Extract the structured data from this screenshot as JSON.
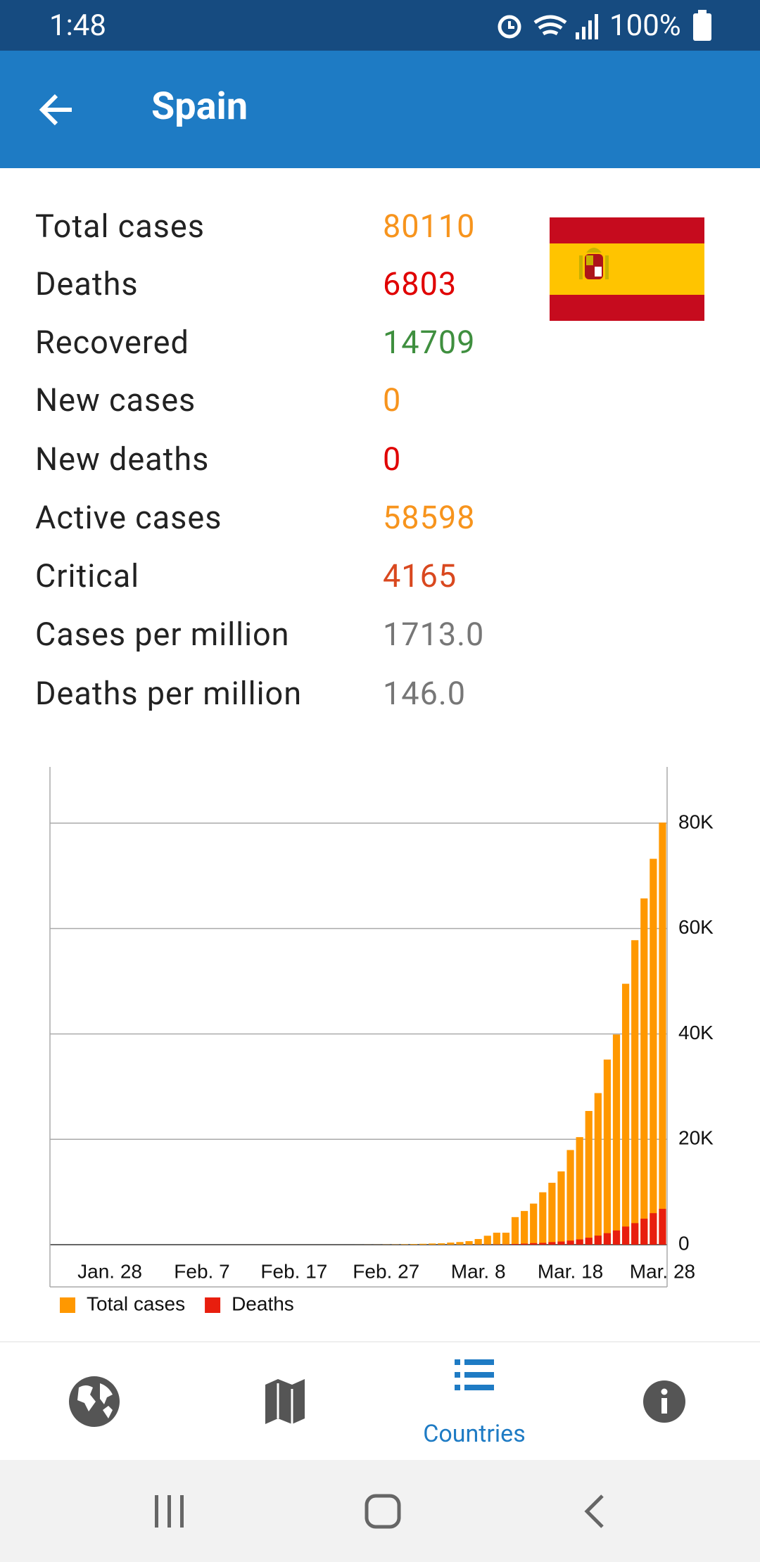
{
  "status_bar": {
    "time": "1:48",
    "battery": "100%"
  },
  "header": {
    "title": "Spain"
  },
  "stats": [
    {
      "label": "Total cases",
      "value": "80110",
      "color": "#f7941d"
    },
    {
      "label": "Deaths",
      "value": "6803",
      "color": "#e00000"
    },
    {
      "label": "Recovered",
      "value": "14709",
      "color": "#3f8f3f"
    },
    {
      "label": "New cases",
      "value": "0",
      "color": "#f7941d"
    },
    {
      "label": "New deaths",
      "value": "0",
      "color": "#e00000"
    },
    {
      "label": "Active cases",
      "value": "58598",
      "color": "#f7941d"
    },
    {
      "label": "Critical",
      "value": "4165",
      "color": "#d9481f"
    },
    {
      "label": "Cases per million",
      "value": "1713.0",
      "color": "#777777"
    },
    {
      "label": "Deaths per million",
      "value": "146.0",
      "color": "#777777"
    }
  ],
  "chart_data": {
    "type": "bar",
    "categories": [
      null,
      null,
      null,
      null,
      null,
      null,
      "Jan. 28",
      null,
      null,
      null,
      null,
      null,
      null,
      null,
      null,
      null,
      "Feb. 7",
      null,
      null,
      null,
      null,
      null,
      null,
      null,
      null,
      null,
      "Feb. 17",
      null,
      null,
      null,
      null,
      null,
      null,
      null,
      null,
      null,
      "Feb. 27",
      null,
      null,
      null,
      null,
      null,
      null,
      null,
      null,
      null,
      "Mar. 8",
      null,
      null,
      null,
      null,
      null,
      null,
      null,
      null,
      null,
      "Mar. 18",
      null,
      null,
      null,
      null,
      null,
      null,
      null,
      null,
      null,
      "Mar. 28"
    ],
    "series": [
      {
        "name": "Total cases",
        "color": "#ff9800",
        "values": [
          0,
          0,
          0,
          0,
          0,
          0,
          0,
          0,
          0,
          0,
          1,
          1,
          1,
          1,
          1,
          1,
          1,
          1,
          1,
          2,
          2,
          2,
          2,
          2,
          2,
          2,
          2,
          2,
          2,
          2,
          2,
          2,
          2,
          6,
          13,
          15,
          32,
          45,
          84,
          120,
          165,
          222,
          259,
          400,
          500,
          673,
          1073,
          1695,
          2277,
          2277,
          5232,
          6391,
          7798,
          9942,
          11748,
          13910,
          17963,
          20410,
          25374,
          28768,
          35136,
          39885,
          49515,
          57786,
          65719,
          73235,
          80110
        ]
      },
      {
        "name": "Deaths",
        "color": "#e81e0e",
        "values": [
          0,
          0,
          0,
          0,
          0,
          0,
          0,
          0,
          0,
          0,
          0,
          0,
          0,
          0,
          0,
          0,
          0,
          0,
          0,
          0,
          0,
          0,
          0,
          0,
          0,
          0,
          0,
          0,
          0,
          0,
          0,
          0,
          0,
          0,
          0,
          0,
          0,
          0,
          0,
          0,
          1,
          2,
          3,
          5,
          10,
          17,
          28,
          35,
          54,
          55,
          133,
          195,
          297,
          342,
          491,
          598,
          767,
          1002,
          1326,
          1720,
          2182,
          2696,
          3434,
          4089,
          4934,
          5982,
          6803
        ]
      }
    ],
    "ylim": [
      0,
      88000
    ],
    "yticks": [
      0,
      {
        "value": 20000,
        "label": "20K"
      },
      {
        "value": 40000,
        "label": "40K"
      },
      {
        "value": 60000,
        "label": "60K"
      },
      {
        "value": 80000,
        "label": "80K"
      }
    ],
    "grid": true,
    "legend": "bottom-left"
  },
  "nav": {
    "active": "Countries"
  }
}
